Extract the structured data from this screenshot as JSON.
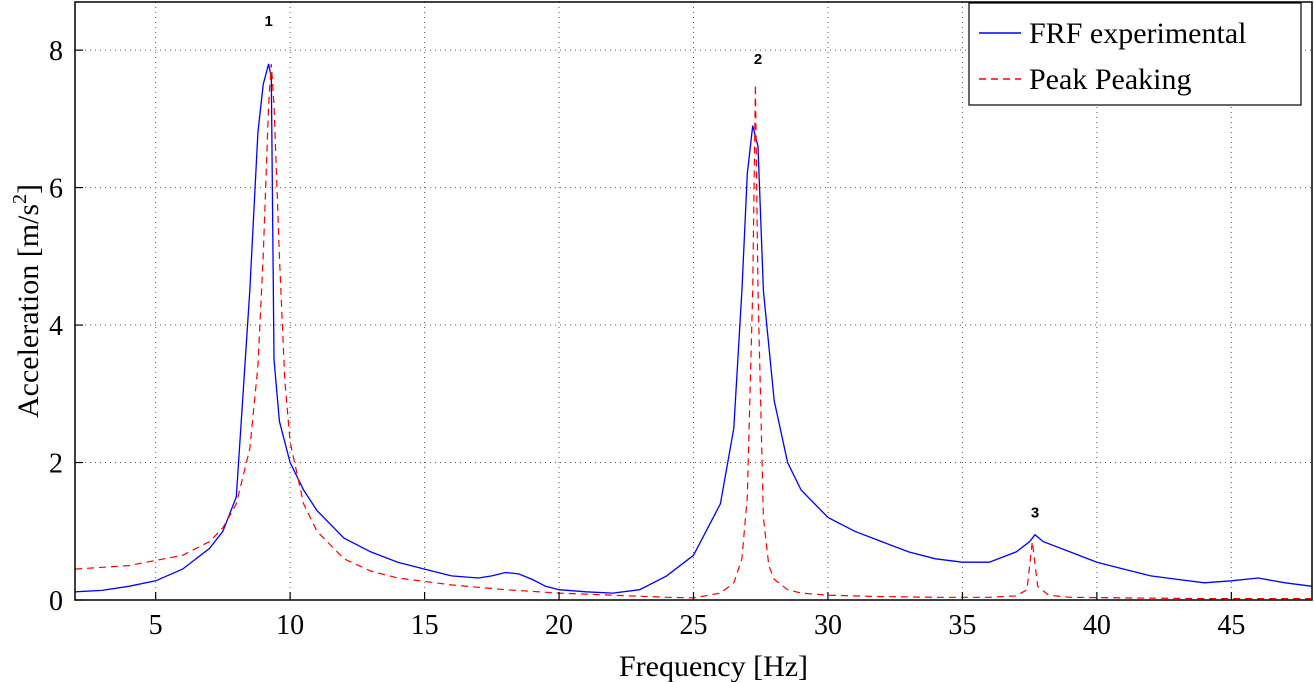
{
  "chart_data": {
    "type": "line",
    "title": "",
    "xlabel": "Frequency [Hz]",
    "ylabel_main": "Acceleration [m/s",
    "ylabel_sup": "2",
    "ylabel_end": "]",
    "xlim": [
      2,
      48
    ],
    "ylim": [
      0,
      8.7
    ],
    "xticks": [
      5,
      10,
      15,
      20,
      25,
      30,
      35,
      40,
      45
    ],
    "yticks": [
      0,
      2,
      4,
      6,
      8
    ],
    "grid": true,
    "legend_position": "top-right",
    "colors": {
      "experimental": "#0000ff",
      "peak_picking": "#ff0000"
    },
    "series": [
      {
        "name": "FRF experimental",
        "style": "solid",
        "x": [
          2,
          3,
          4,
          5,
          6,
          7,
          7.5,
          8,
          8.5,
          8.8,
          9.0,
          9.2,
          9.3,
          9.4,
          9.6,
          10,
          10.5,
          11,
          12,
          13,
          14,
          15,
          16,
          17,
          17.5,
          18,
          18.5,
          19,
          19.5,
          20,
          21,
          22,
          23,
          24,
          25,
          26,
          26.5,
          26.8,
          27.0,
          27.2,
          27.4,
          27.6,
          28,
          28.5,
          29,
          30,
          31,
          32,
          33,
          34,
          35,
          36,
          37,
          37.5,
          37.7,
          38,
          39,
          40,
          41,
          42,
          43,
          44,
          45,
          46,
          47,
          48
        ],
        "y": [
          0.12,
          0.14,
          0.2,
          0.28,
          0.45,
          0.75,
          1.0,
          1.5,
          4.5,
          6.8,
          7.5,
          7.8,
          7.6,
          3.5,
          2.6,
          2.0,
          1.6,
          1.3,
          0.9,
          0.7,
          0.55,
          0.45,
          0.35,
          0.32,
          0.35,
          0.4,
          0.38,
          0.3,
          0.2,
          0.15,
          0.12,
          0.1,
          0.15,
          0.35,
          0.65,
          1.4,
          2.5,
          4.5,
          6.2,
          6.9,
          6.6,
          4.5,
          2.9,
          2.0,
          1.6,
          1.2,
          1.0,
          0.85,
          0.7,
          0.6,
          0.55,
          0.55,
          0.7,
          0.85,
          0.95,
          0.85,
          0.7,
          0.55,
          0.45,
          0.35,
          0.3,
          0.25,
          0.28,
          0.32,
          0.25,
          0.2
        ]
      },
      {
        "name": "Peak Peaking",
        "style": "dashed",
        "x": [
          2,
          4,
          6,
          7,
          7.5,
          8,
          8.5,
          8.8,
          9.0,
          9.2,
          9.3,
          9.4,
          9.6,
          9.8,
          10,
          10.5,
          11,
          12,
          13,
          14,
          16,
          18,
          20,
          22,
          24,
          25,
          26,
          26.5,
          26.8,
          27.0,
          27.2,
          27.3,
          27.4,
          27.6,
          27.8,
          28,
          28.5,
          29,
          30,
          32,
          34,
          36,
          37,
          37.4,
          37.6,
          37.8,
          38.2,
          39,
          41,
          44,
          48
        ],
        "y": [
          0.45,
          0.5,
          0.65,
          0.85,
          1.05,
          1.4,
          2.2,
          3.4,
          5.0,
          7.2,
          7.8,
          7.2,
          5.0,
          3.2,
          2.3,
          1.4,
          1.0,
          0.6,
          0.42,
          0.32,
          0.22,
          0.15,
          0.1,
          0.07,
          0.04,
          0.03,
          0.1,
          0.25,
          0.6,
          1.5,
          4.5,
          7.5,
          4.5,
          1.2,
          0.5,
          0.3,
          0.15,
          0.1,
          0.07,
          0.05,
          0.04,
          0.04,
          0.06,
          0.15,
          0.85,
          0.2,
          0.07,
          0.04,
          0.03,
          0.02,
          0.02
        ]
      }
    ],
    "annotations": [
      {
        "text": "1",
        "x": 9.2,
        "y": 8.35
      },
      {
        "text": "2",
        "x": 27.4,
        "y": 7.8
      },
      {
        "text": "3",
        "x": 37.7,
        "y": 1.2
      }
    ]
  }
}
